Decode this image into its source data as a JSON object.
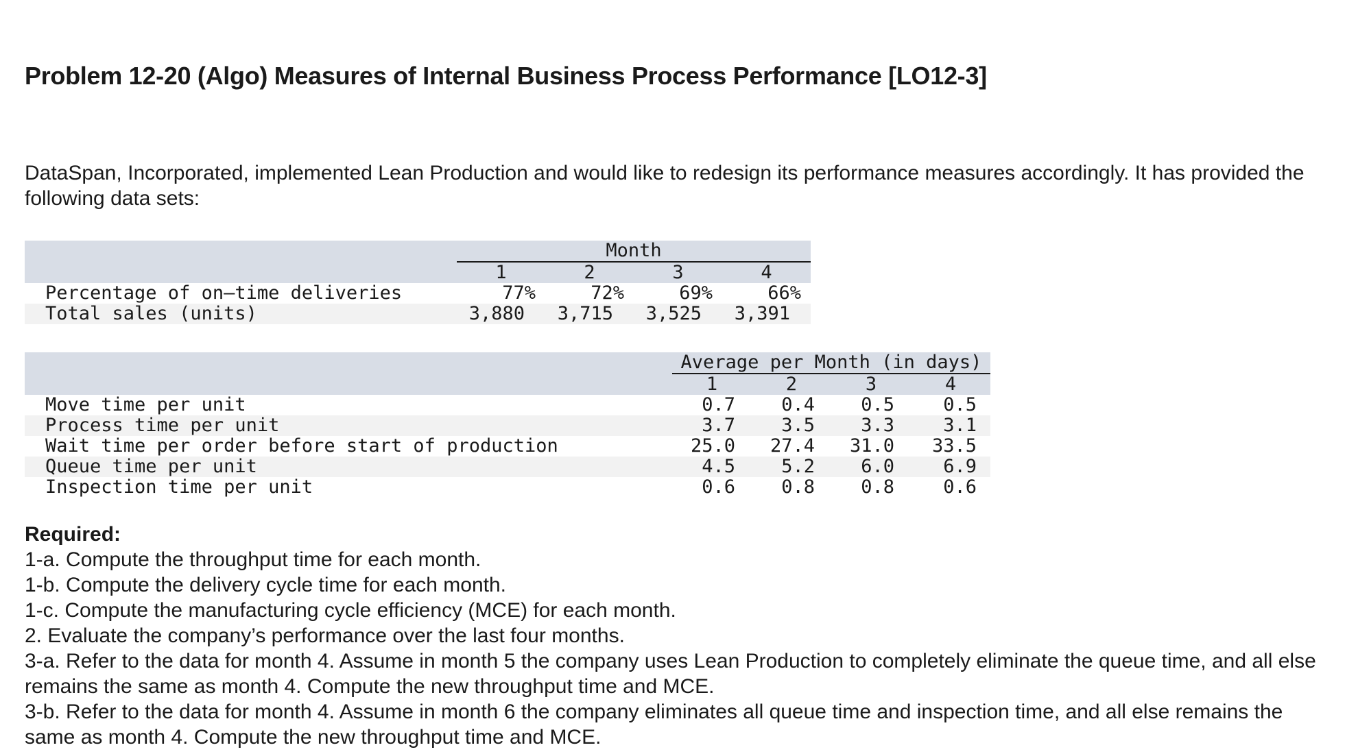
{
  "title": "Problem 12-20 (Algo) Measures of Internal Business Process Performance [LO12-3]",
  "intro": "DataSpan, Incorporated, implemented Lean Production and would like to redesign its performance measures accordingly. It has provided the following data sets:",
  "table1": {
    "group_header": "Month",
    "columns": [
      "1",
      "2",
      "3",
      "4"
    ],
    "rows": [
      {
        "label": "Percentage of on–time deliveries",
        "values": [
          "77%",
          "72%",
          "69%",
          "66%"
        ]
      },
      {
        "label": "Total sales (units)",
        "values": [
          "3,880",
          "3,715",
          "3,525",
          "3,391"
        ]
      }
    ]
  },
  "table2": {
    "group_header": "Average per Month (in days)",
    "columns": [
      "1",
      "2",
      "3",
      "4"
    ],
    "rows": [
      {
        "label": "Move time per unit",
        "values": [
          "0.7",
          "0.4",
          "0.5",
          "0.5"
        ]
      },
      {
        "label": "Process time per unit",
        "values": [
          "3.7",
          "3.5",
          "3.3",
          "3.1"
        ]
      },
      {
        "label": "Wait time per order before start of production",
        "values": [
          "25.0",
          "27.4",
          "31.0",
          "33.5"
        ]
      },
      {
        "label": "Queue time per unit",
        "values": [
          "4.5",
          "5.2",
          "6.0",
          "6.9"
        ]
      },
      {
        "label": "Inspection time per unit",
        "values": [
          "0.6",
          "0.8",
          "0.8",
          "0.6"
        ]
      }
    ]
  },
  "required": {
    "heading": "Required:",
    "items": [
      "1-a. Compute the throughput time for each month.",
      "1-b. Compute the delivery cycle time for each month.",
      "1-c. Compute the manufacturing cycle efficiency (MCE) for each month.",
      "2. Evaluate the company’s performance over the last four months.",
      "3-a. Refer to the data for month 4. Assume in month 5 the company uses Lean Production to completely eliminate the queue time, and all else remains the same as month 4. Compute the new throughput time and MCE.",
      "3-b. Refer to the data for month 4. Assume in month 6 the company eliminates all queue time and inspection time, and all else remains the same as month 4. Compute the new throughput time and MCE."
    ]
  }
}
